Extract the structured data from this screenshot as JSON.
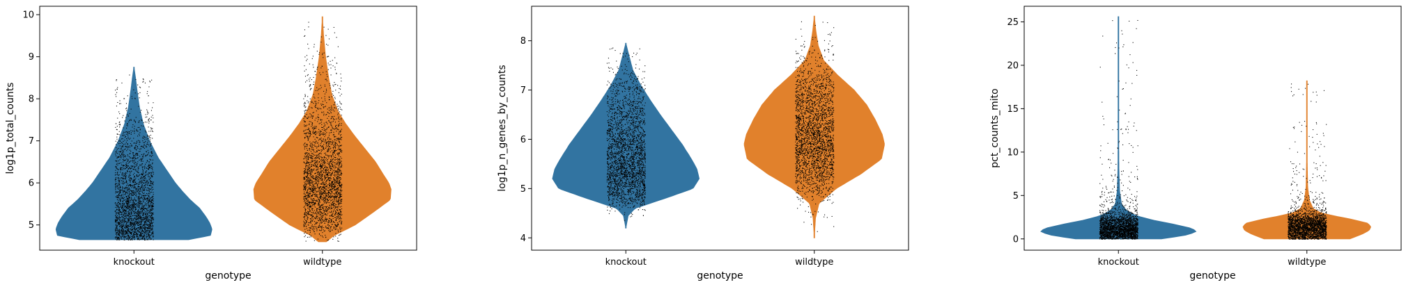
{
  "chart_data": [
    {
      "type": "violin",
      "categories": [
        "knockout",
        "wildtype"
      ],
      "colors": [
        "#3274a1",
        "#e1812c"
      ],
      "xlabel": "genotype",
      "ylabel": "log1p_total_counts",
      "ylim": [
        4.4,
        10.2
      ],
      "yticks": [
        5,
        6,
        7,
        8,
        9,
        10
      ],
      "series": [
        {
          "category": "knockout",
          "min": 4.65,
          "max": 8.75,
          "profile": [
            [
              4.65,
              0.7
            ],
            [
              4.75,
              0.98
            ],
            [
              4.9,
              1.0
            ],
            [
              5.05,
              0.97
            ],
            [
              5.2,
              0.92
            ],
            [
              5.4,
              0.84
            ],
            [
              5.6,
              0.72
            ],
            [
              5.8,
              0.62
            ],
            [
              6.0,
              0.53
            ],
            [
              6.3,
              0.42
            ],
            [
              6.6,
              0.31
            ],
            [
              7.0,
              0.2
            ],
            [
              7.4,
              0.12
            ],
            [
              7.8,
              0.07
            ],
            [
              8.2,
              0.04
            ],
            [
              8.5,
              0.02
            ],
            [
              8.75,
              0.0
            ]
          ]
        },
        {
          "category": "wildtype",
          "min": 4.6,
          "max": 9.95,
          "profile": [
            [
              4.6,
              0.05
            ],
            [
              4.75,
              0.15
            ],
            [
              5.0,
              0.42
            ],
            [
              5.3,
              0.65
            ],
            [
              5.6,
              0.87
            ],
            [
              5.85,
              0.88
            ],
            [
              6.0,
              0.85
            ],
            [
              6.2,
              0.78
            ],
            [
              6.5,
              0.68
            ],
            [
              6.8,
              0.55
            ],
            [
              7.1,
              0.42
            ],
            [
              7.4,
              0.3
            ],
            [
              7.7,
              0.2
            ],
            [
              8.1,
              0.12
            ],
            [
              8.5,
              0.08
            ],
            [
              9.0,
              0.04
            ],
            [
              9.5,
              0.015
            ],
            [
              9.95,
              0.0
            ]
          ]
        }
      ]
    },
    {
      "type": "violin",
      "categories": [
        "knockout",
        "wildtype"
      ],
      "colors": [
        "#3274a1",
        "#e1812c"
      ],
      "xlabel": "genotype",
      "ylabel": "log1p_n_genes_by_counts",
      "ylim": [
        3.75,
        8.7
      ],
      "yticks": [
        4,
        5,
        6,
        7,
        8
      ],
      "series": [
        {
          "category": "knockout",
          "min": 4.2,
          "max": 7.95,
          "profile": [
            [
              4.2,
              0.0
            ],
            [
              4.45,
              0.03
            ],
            [
              4.6,
              0.12
            ],
            [
              4.8,
              0.5
            ],
            [
              5.0,
              0.86
            ],
            [
              5.2,
              0.94
            ],
            [
              5.4,
              0.91
            ],
            [
              5.6,
              0.84
            ],
            [
              5.9,
              0.72
            ],
            [
              6.2,
              0.58
            ],
            [
              6.5,
              0.44
            ],
            [
              6.8,
              0.31
            ],
            [
              7.1,
              0.19
            ],
            [
              7.4,
              0.09
            ],
            [
              7.7,
              0.04
            ],
            [
              7.95,
              0.0
            ]
          ]
        },
        {
          "category": "wildtype",
          "min": 4.0,
          "max": 8.5,
          "profile": [
            [
              4.0,
              0.0
            ],
            [
              4.4,
              0.015
            ],
            [
              4.7,
              0.06
            ],
            [
              5.0,
              0.28
            ],
            [
              5.3,
              0.6
            ],
            [
              5.6,
              0.86
            ],
            [
              5.9,
              0.9
            ],
            [
              6.1,
              0.87
            ],
            [
              6.4,
              0.78
            ],
            [
              6.7,
              0.67
            ],
            [
              7.0,
              0.51
            ],
            [
              7.3,
              0.3
            ],
            [
              7.6,
              0.12
            ],
            [
              7.9,
              0.05
            ],
            [
              8.2,
              0.02
            ],
            [
              8.5,
              0.0
            ]
          ]
        }
      ]
    },
    {
      "type": "violin",
      "categories": [
        "knockout",
        "wildtype"
      ],
      "colors": [
        "#3274a1",
        "#e1812c"
      ],
      "xlabel": "genotype",
      "ylabel": "pct_counts_mito",
      "ylim": [
        -1.3,
        26.8
      ],
      "yticks": [
        0,
        5,
        10,
        15,
        20,
        25
      ],
      "series": [
        {
          "category": "knockout",
          "min": 0,
          "max": 25.6,
          "profile": [
            [
              0,
              0.55
            ],
            [
              0.4,
              0.85
            ],
            [
              0.8,
              1.0
            ],
            [
              1.2,
              0.95
            ],
            [
              1.7,
              0.7
            ],
            [
              2.2,
              0.42
            ],
            [
              2.7,
              0.22
            ],
            [
              3.3,
              0.1
            ],
            [
              4.0,
              0.04
            ],
            [
              5.5,
              0.015
            ],
            [
              8,
              0.006
            ],
            [
              12,
              0.003
            ],
            [
              18,
              0.001
            ],
            [
              25.6,
              0.0
            ]
          ]
        },
        {
          "category": "wildtype",
          "min": 0,
          "max": 18.2,
          "profile": [
            [
              0,
              0.55
            ],
            [
              0.6,
              0.72
            ],
            [
              1.0,
              0.8
            ],
            [
              1.4,
              0.82
            ],
            [
              1.8,
              0.78
            ],
            [
              2.2,
              0.6
            ],
            [
              2.6,
              0.38
            ],
            [
              3.0,
              0.18
            ],
            [
              3.5,
              0.08
            ],
            [
              4.5,
              0.03
            ],
            [
              6,
              0.01
            ],
            [
              9,
              0.004
            ],
            [
              13,
              0.002
            ],
            [
              18.2,
              0.0
            ]
          ]
        }
      ]
    }
  ]
}
